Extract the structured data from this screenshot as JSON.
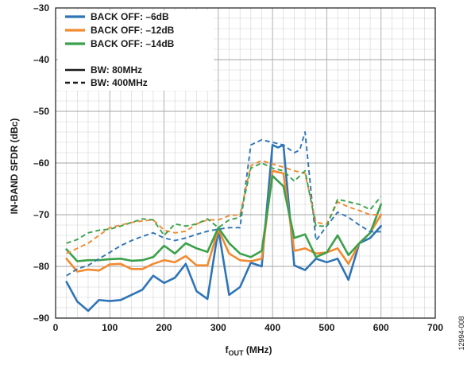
{
  "chart_data": {
    "type": "line",
    "title": "",
    "xlabel_main": "f",
    "xlabel_sub": "OUT",
    "xlabel_unit": " (MHz)",
    "ylabel": "IN-BAND SFDR (dBc)",
    "xlim": [
      0,
      700
    ],
    "ylim": [
      -90,
      -30
    ],
    "xticks": [
      "0",
      "100",
      "200",
      "300",
      "400",
      "500",
      "600",
      "700"
    ],
    "yticks": [
      "–30",
      "–40",
      "–50",
      "–60",
      "–70",
      "–80",
      "–90"
    ],
    "grid": true,
    "legend_position": "top-left",
    "figure_id": "12994-008",
    "legend": {
      "series": [
        {
          "label": "BACK OFF: –6dB",
          "color": "#2e75b6"
        },
        {
          "label": "BACK OFF: –12dB",
          "color": "#f28a30"
        },
        {
          "label": "BACK OFF: –14dB",
          "color": "#3aa14a"
        }
      ],
      "styles": [
        {
          "label": "BW: 80MHz",
          "dash": "solid"
        },
        {
          "label": "BW: 400MHz",
          "dash": "dashed"
        }
      ]
    },
    "series": [
      {
        "name": "BACK OFF: –6dB, BW: 80MHz",
        "color": "#2e75b6",
        "dash": "solid",
        "x": [
          20,
          40,
          60,
          80,
          100,
          120,
          140,
          160,
          180,
          200,
          220,
          240,
          260,
          280,
          300,
          320,
          340,
          360,
          380,
          400,
          410,
          420,
          440,
          460,
          480,
          500,
          520,
          540,
          560,
          580,
          600
        ],
        "y": [
          -83,
          -86.8,
          -88.6,
          -86.5,
          -86.7,
          -86.5,
          -85.5,
          -84.5,
          -81.8,
          -83.2,
          -82.2,
          -79.5,
          -84.8,
          -86.3,
          -72.8,
          -85.5,
          -84,
          -79.3,
          -80,
          -56.5,
          -57,
          -56.5,
          -79.8,
          -80.7,
          -78.5,
          -79.2,
          -78.5,
          -82.6,
          -75.5,
          -74.5,
          -72.2
        ]
      },
      {
        "name": "BACK OFF: –12dB, BW: 80MHz",
        "color": "#f28a30",
        "dash": "solid",
        "x": [
          20,
          40,
          60,
          80,
          100,
          120,
          140,
          160,
          180,
          200,
          220,
          240,
          260,
          280,
          300,
          320,
          340,
          360,
          380,
          400,
          420,
          440,
          460,
          480,
          500,
          520,
          540,
          560,
          580,
          600
        ],
        "y": [
          -78.5,
          -81,
          -80.6,
          -80.8,
          -79.6,
          -79.5,
          -80.5,
          -80.5,
          -79.5,
          -78.8,
          -79.2,
          -78,
          -79.8,
          -79.8,
          -72.8,
          -77.5,
          -78.8,
          -79,
          -78.5,
          -61.5,
          -62,
          -77,
          -76.5,
          -77.5,
          -77.3,
          -76.5,
          -79.5,
          -75.5,
          -73.5,
          -70
        ]
      },
      {
        "name": "BACK OFF: –14dB, BW: 80MHz",
        "color": "#3aa14a",
        "dash": "solid",
        "x": [
          20,
          40,
          60,
          80,
          100,
          120,
          140,
          160,
          180,
          200,
          220,
          240,
          260,
          280,
          300,
          320,
          340,
          360,
          380,
          400,
          420,
          440,
          460,
          480,
          500,
          520,
          540,
          560,
          580,
          600
        ],
        "y": [
          -76.7,
          -79,
          -78.8,
          -78.8,
          -78.6,
          -78.5,
          -78.9,
          -78.8,
          -78.2,
          -76,
          -77.5,
          -75.5,
          -76.5,
          -77.2,
          -72.5,
          -75.5,
          -77.5,
          -78.2,
          -77,
          -62.5,
          -64.5,
          -74.5,
          -73.8,
          -78.2,
          -77.3,
          -74,
          -77.8,
          -75.5,
          -73.5,
          -68
        ]
      },
      {
        "name": "BACK OFF: –6dB, BW: 400MHz",
        "color": "#2e75b6",
        "dash": "dashed",
        "x": [
          20,
          40,
          60,
          80,
          100,
          120,
          140,
          160,
          180,
          200,
          220,
          240,
          260,
          280,
          300,
          320,
          340,
          360,
          380,
          400,
          420,
          440,
          450,
          460,
          480,
          500,
          520,
          540,
          560,
          580,
          600
        ],
        "y": [
          -81.8,
          -80.5,
          -79.8,
          -78.5,
          -77.3,
          -76,
          -75,
          -74.2,
          -73.5,
          -74.5,
          -75,
          -74.5,
          -73.8,
          -73.2,
          -72.8,
          -72.5,
          -72.5,
          -56.5,
          -55.5,
          -56,
          -56.5,
          -58,
          -57.5,
          -54,
          -75,
          -72.2,
          -69.5,
          -70.5,
          -72,
          -73.3,
          -73.3
        ]
      },
      {
        "name": "BACK OFF: –12dB, BW: 400MHz",
        "color": "#f28a30",
        "dash": "dashed",
        "x": [
          20,
          40,
          60,
          80,
          100,
          120,
          140,
          160,
          180,
          200,
          220,
          240,
          260,
          280,
          300,
          320,
          340,
          360,
          380,
          400,
          420,
          440,
          460,
          480,
          500,
          520,
          540,
          560,
          580,
          600
        ],
        "y": [
          -77.5,
          -76.5,
          -75.5,
          -74,
          -72.5,
          -72,
          -71.5,
          -71.2,
          -71,
          -73,
          -73.5,
          -73.2,
          -71.8,
          -71,
          -71,
          -70.2,
          -70,
          -60.5,
          -59.5,
          -60.2,
          -60.8,
          -61.5,
          -62,
          -71.5,
          -71.8,
          -67.5,
          -68.5,
          -69.2,
          -70,
          -70
        ]
      },
      {
        "name": "BACK OFF: –14dB, BW: 400MHz",
        "color": "#3aa14a",
        "dash": "dashed",
        "x": [
          20,
          40,
          60,
          80,
          100,
          120,
          140,
          160,
          180,
          200,
          220,
          240,
          260,
          280,
          300,
          320,
          340,
          360,
          380,
          400,
          420,
          440,
          460,
          480,
          500,
          520,
          540,
          560,
          580,
          600
        ],
        "y": [
          -75.5,
          -74.8,
          -73.5,
          -73,
          -72.8,
          -72.2,
          -71.5,
          -70.8,
          -71,
          -74,
          -71.8,
          -72.2,
          -71.8,
          -70.8,
          -72.5,
          -71,
          -70.5,
          -61,
          -60,
          -61,
          -61.5,
          -63.5,
          -61.5,
          -72.2,
          -72.2,
          -67,
          -67.5,
          -68,
          -69,
          -66.5
        ]
      }
    ]
  }
}
